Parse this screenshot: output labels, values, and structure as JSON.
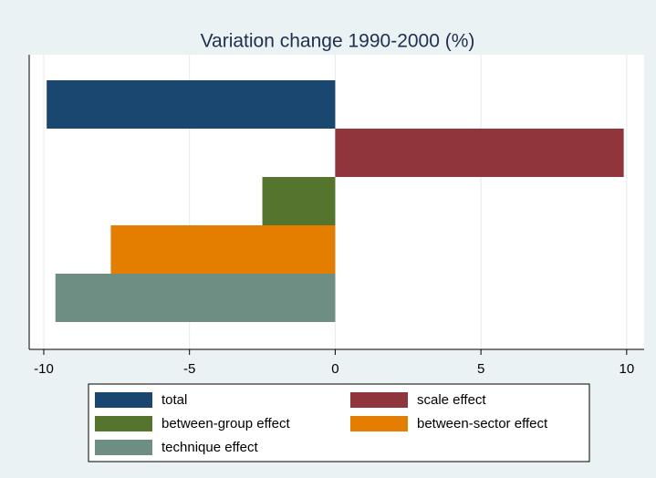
{
  "chart_data": {
    "type": "bar",
    "orientation": "horizontal",
    "title": "Variation change 1990-2000 (%)",
    "series": [
      {
        "name": "total",
        "color": "#1a476f",
        "values": [
          -9.9
        ]
      },
      {
        "name": "scale effect",
        "color": "#90353b",
        "values": [
          9.9
        ]
      },
      {
        "name": "between-group effect",
        "color": "#55752f",
        "values": [
          -2.5
        ]
      },
      {
        "name": "between-sector effect",
        "color": "#e37e00",
        "values": [
          -7.7
        ]
      },
      {
        "name": "technique effect",
        "color": "#6e8e84",
        "values": [
          -9.6
        ]
      }
    ],
    "xlim": [
      -10.5,
      10.6
    ],
    "xticks": [
      -10,
      -5,
      0,
      5,
      10
    ],
    "grid": true
  }
}
